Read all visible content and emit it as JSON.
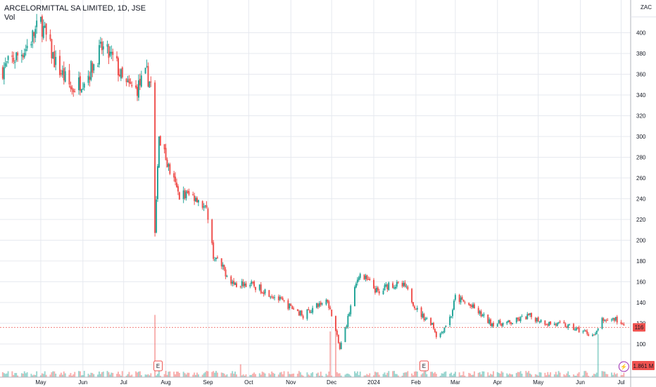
{
  "header": {
    "title": "ARCELORMITTAL SA LIMITED, 1D, JSE",
    "subtitle": "Vol",
    "currency": "ZAC"
  },
  "price_marker": {
    "value": "116",
    "color": "#ef5350"
  },
  "volume_marker": {
    "value": "1.861 M",
    "color": "#ef5350"
  },
  "earnings_badges": [
    "E",
    "E"
  ],
  "dividend_badge": "⚡",
  "colors": {
    "up": "#26a69a",
    "down": "#ef5350",
    "grid": "#e6e9ef"
  },
  "chart_data": {
    "type": "candlestick",
    "title": "ARCELORMITTAL SA LIMITED, 1D, JSE",
    "ylabel": "ZAC",
    "ylim": [
      68,
      418
    ],
    "y_ticks": [
      80,
      100,
      120,
      140,
      160,
      180,
      200,
      220,
      240,
      260,
      280,
      300,
      320,
      340,
      360,
      380,
      400
    ],
    "x_ticks": [
      "May",
      "Jun",
      "Jul",
      "Aug",
      "Sep",
      "Oct",
      "Nov",
      "Dec",
      "2024",
      "Feb",
      "Mar",
      "Apr",
      "May",
      "Jun",
      "Jul"
    ],
    "x_range_days": [
      "2023-04-01",
      "2024-07-08"
    ],
    "x_tick_dates": [
      "2023-05-01",
      "2023-06-01",
      "2023-07-01",
      "2023-08-01",
      "2023-09-01",
      "2023-10-01",
      "2023-11-01",
      "2023-12-01",
      "2024-01-01",
      "2024-02-01",
      "2024-03-01",
      "2024-04-01",
      "2024-05-01",
      "2024-06-01",
      "2024-07-01"
    ],
    "close_anchors": [
      [
        "2023-04-03",
        365
      ],
      [
        "2023-04-20",
        385
      ],
      [
        "2023-05-01",
        410
      ],
      [
        "2023-05-12",
        370
      ],
      [
        "2023-05-24",
        345
      ],
      [
        "2023-06-05",
        360
      ],
      [
        "2023-06-15",
        385
      ],
      [
        "2023-06-25",
        372
      ],
      [
        "2023-07-01",
        350
      ],
      [
        "2023-07-10",
        345
      ],
      [
        "2023-07-18",
        360
      ],
      [
        "2023-07-21",
        350
      ],
      [
        "2023-07-24",
        205
      ],
      [
        "2023-07-27",
        300
      ],
      [
        "2023-08-03",
        270
      ],
      [
        "2023-08-10",
        245
      ],
      [
        "2023-08-24",
        242
      ],
      [
        "2023-09-01",
        225
      ],
      [
        "2023-09-05",
        185
      ],
      [
        "2023-09-20",
        158
      ],
      [
        "2023-10-01",
        158
      ],
      [
        "2023-10-15",
        150
      ],
      [
        "2023-10-30",
        137
      ],
      [
        "2023-11-10",
        128
      ],
      [
        "2023-11-28",
        143
      ],
      [
        "2023-12-04",
        112
      ],
      [
        "2023-12-07",
        95
      ],
      [
        "2023-12-13",
        125
      ],
      [
        "2023-12-21",
        168
      ],
      [
        "2023-12-28",
        160
      ],
      [
        "2024-01-05",
        148
      ],
      [
        "2024-01-12",
        158
      ],
      [
        "2024-01-24",
        155
      ],
      [
        "2024-02-03",
        130
      ],
      [
        "2024-02-13",
        120
      ],
      [
        "2024-02-17",
        105
      ],
      [
        "2024-02-27",
        128
      ],
      [
        "2024-03-01",
        145
      ],
      [
        "2024-03-14",
        135
      ],
      [
        "2024-03-27",
        120
      ],
      [
        "2024-04-10",
        120
      ],
      [
        "2024-04-24",
        127
      ],
      [
        "2024-05-08",
        120
      ],
      [
        "2024-05-20",
        118
      ],
      [
        "2024-06-03",
        112
      ],
      [
        "2024-06-12",
        108
      ],
      [
        "2024-06-17",
        123
      ],
      [
        "2024-06-27",
        124
      ],
      [
        "2024-07-03",
        116
      ]
    ],
    "volume_events": [
      [
        "2023-07-24",
        "high"
      ],
      [
        "2023-07-27",
        "medium"
      ],
      [
        "2023-09-25",
        "medium"
      ],
      [
        "2023-11-30",
        "high"
      ],
      [
        "2023-12-04",
        "high"
      ],
      [
        "2024-06-14",
        "high"
      ]
    ],
    "last_close": 116,
    "last_volume": "1.861 M"
  }
}
